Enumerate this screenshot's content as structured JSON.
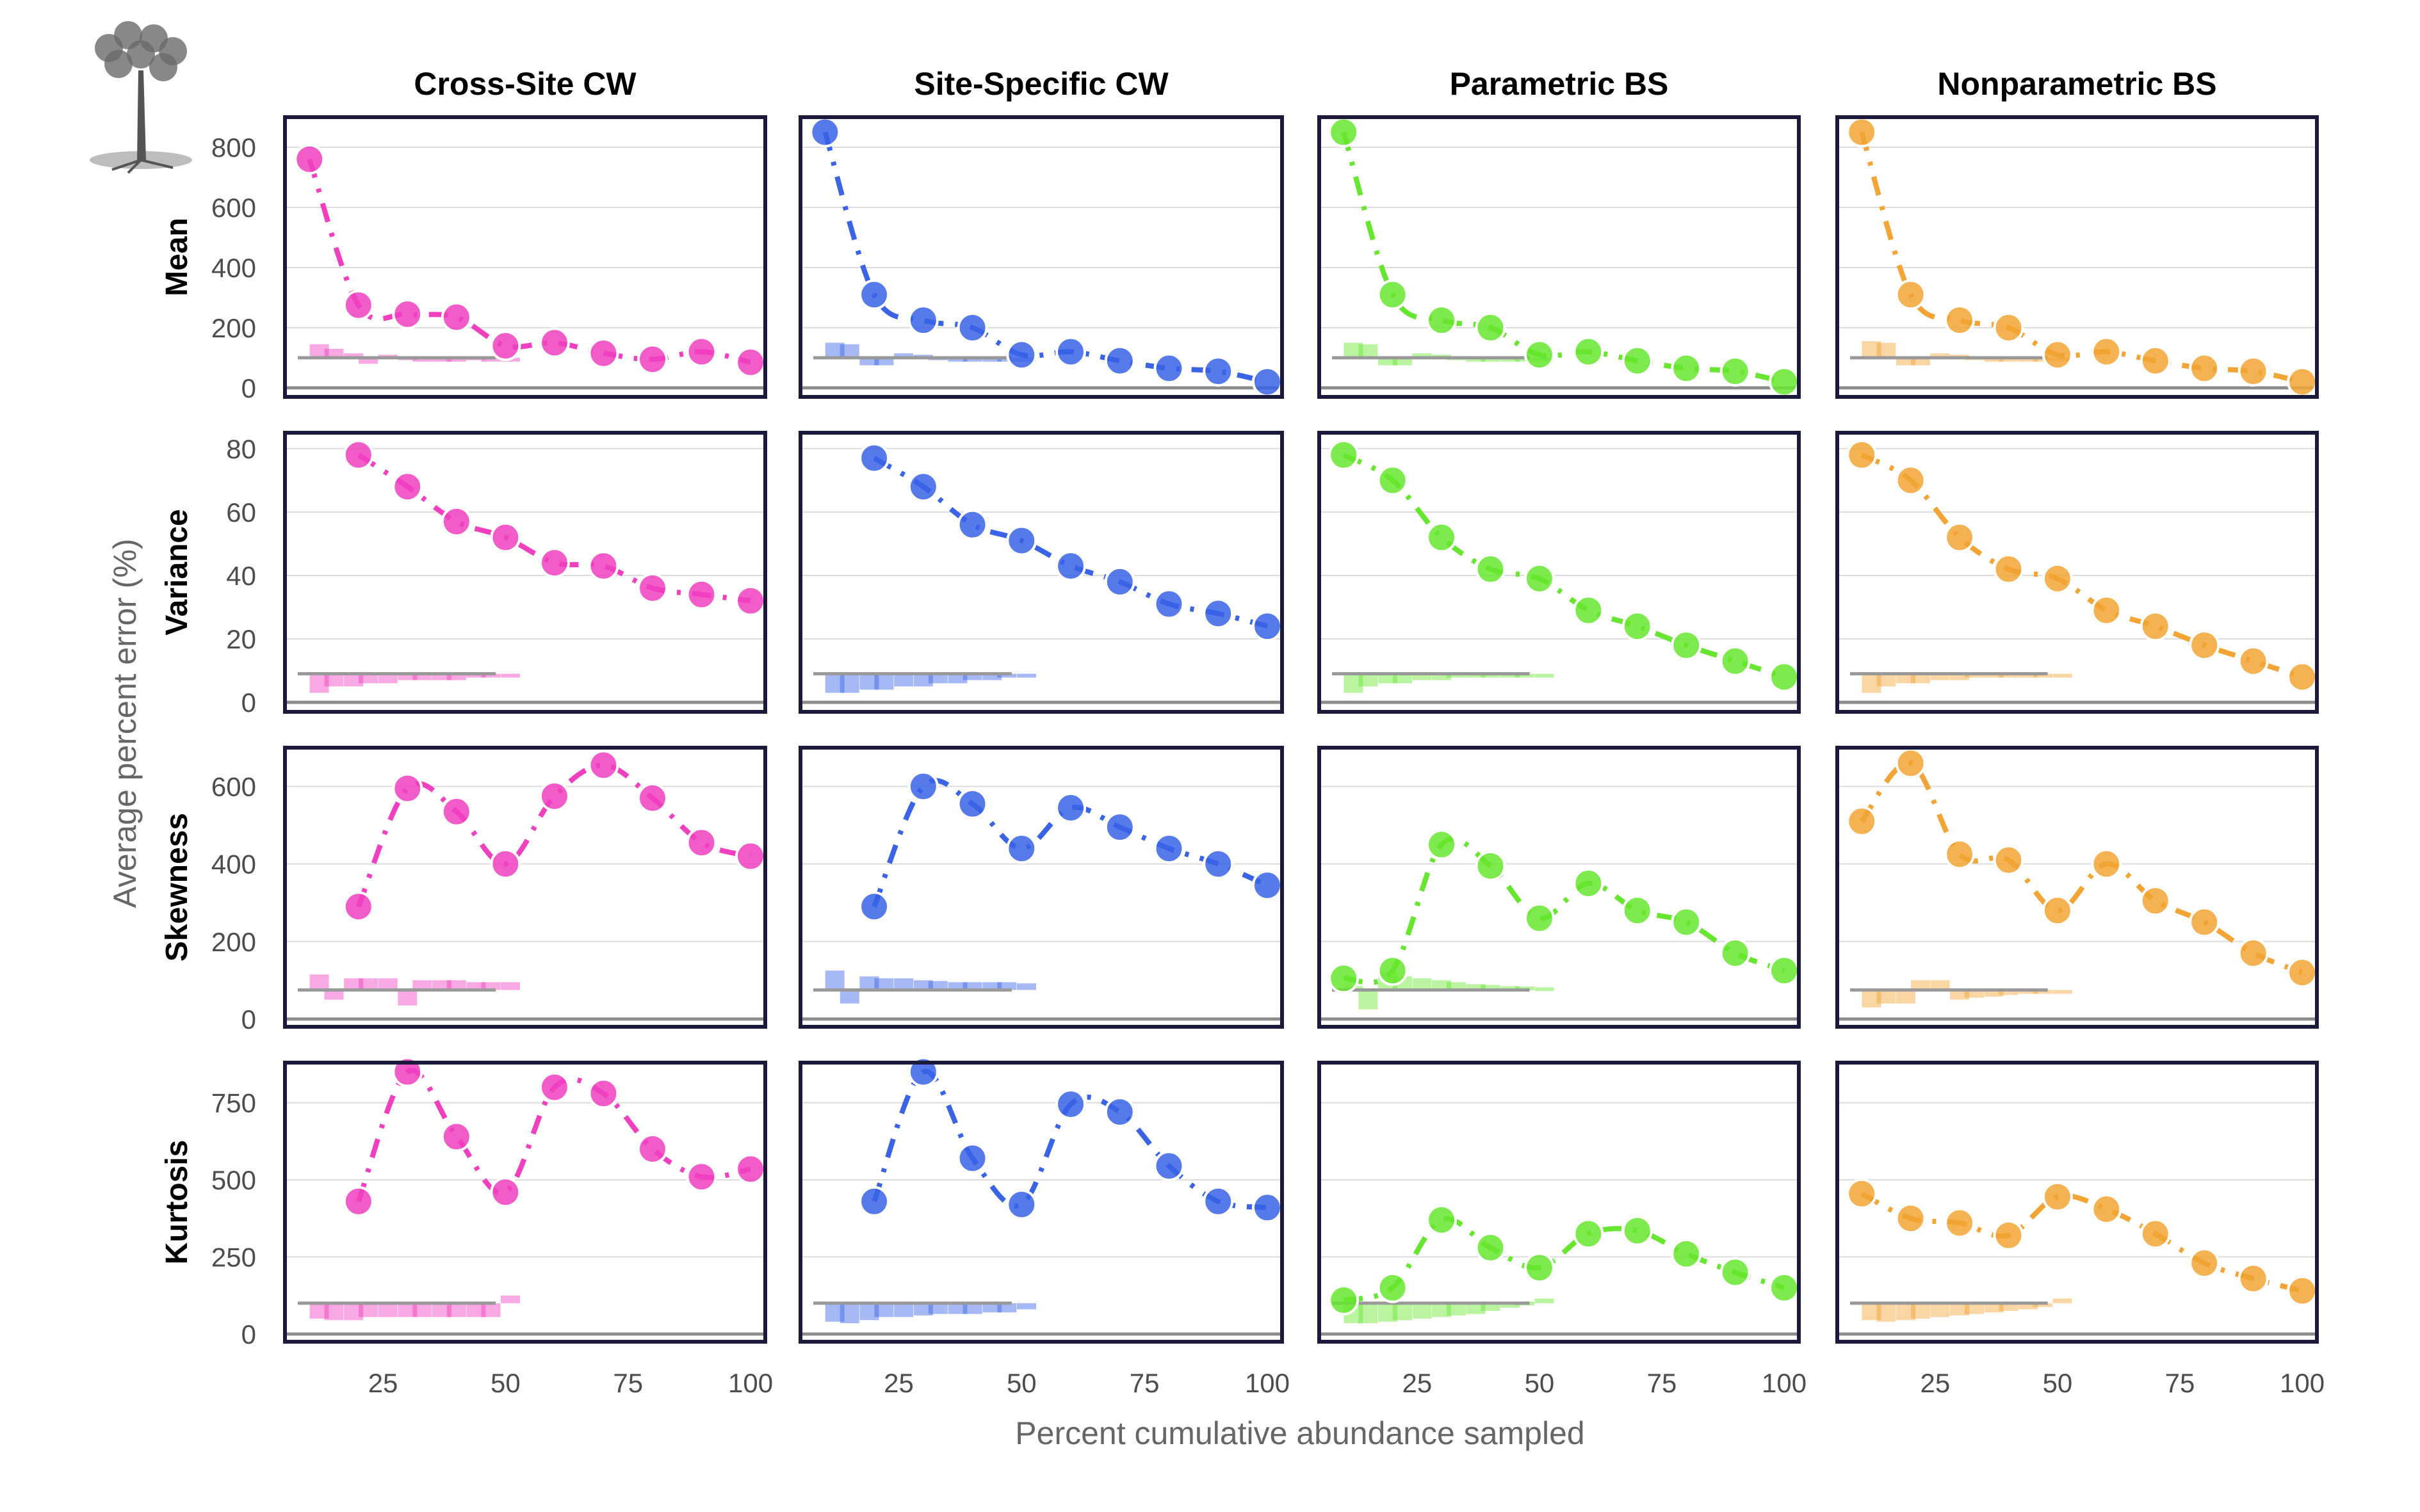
{
  "figure": {
    "xlabel": "Percent cumulative abundance sampled",
    "ylabel": "Average percent error (%)"
  },
  "chart_data": {
    "type": "scatter",
    "layout": "facet-grid 4 rows x 4 columns",
    "columns": [
      {
        "name": "Cross-Site CW",
        "color": "#f03fbf"
      },
      {
        "name": "Site-Specific CW",
        "color": "#3a63e6"
      },
      {
        "name": "Parametric BS",
        "color": "#66e62e"
      },
      {
        "name": "Nonparametric BS",
        "color": "#f2a434"
      }
    ],
    "x_ticks": [
      25,
      50,
      75,
      100
    ],
    "xlim": [
      5,
      103
    ],
    "x_points": [
      10,
      20,
      30,
      40,
      50,
      60,
      70,
      80,
      90,
      100
    ],
    "grid": true,
    "rows": [
      {
        "name": "Mean",
        "ylim": [
          -30,
          900
        ],
        "y_ticks": [
          0,
          200,
          400,
          600,
          800
        ],
        "panels": [
          {
            "points": [
              760,
              275,
              245,
              235,
              140,
              150,
              115,
              95,
              120,
              85
            ],
            "bar_x": [
              12,
              15,
              19,
              22,
              26,
              30,
              33,
              37,
              40,
              44,
              47,
              51
            ],
            "bars": [
              145,
              130,
              115,
              80,
              110,
              105,
              100,
              95,
              90,
              105,
              100,
              98
            ],
            "ref": 100
          },
          {
            "points": [
              850,
              310,
              225,
              200,
              110,
              120,
              90,
              65,
              55,
              20
            ],
            "bar_x": [
              12,
              15,
              19,
              22,
              26,
              30,
              33,
              37,
              40,
              44,
              47,
              51
            ],
            "bars": [
              150,
              145,
              75,
              75,
              115,
              110,
              105,
              100,
              98,
              100,
              98,
              97
            ],
            "ref": 100
          },
          {
            "points": [
              850,
              310,
              225,
              200,
              110,
              120,
              90,
              65,
              55,
              20
            ],
            "bar_x": [
              12,
              15,
              19,
              22,
              26,
              30,
              33,
              37,
              40,
              44,
              47,
              51
            ],
            "bars": [
              150,
              145,
              75,
              75,
              115,
              110,
              105,
              100,
              98,
              100,
              98,
              97
            ],
            "ref": 100
          },
          {
            "points": [
              850,
              310,
              225,
              200,
              110,
              120,
              90,
              65,
              55,
              20
            ],
            "bar_x": [
              12,
              15,
              19,
              22,
              26,
              30,
              33,
              37,
              40,
              44,
              47,
              51
            ],
            "bars": [
              155,
              150,
              75,
              75,
              115,
              110,
              105,
              100,
              98,
              100,
              98,
              97
            ],
            "ref": 100
          }
        ]
      },
      {
        "name": "Variance",
        "ylim": [
          -3,
          85
        ],
        "y_ticks": [
          0,
          20,
          40,
          60,
          80
        ],
        "panels": [
          {
            "points": [
              null,
              78,
              68,
              57,
              52,
              44,
              43,
              36,
              34,
              32
            ],
            "bar_x": [
              12,
              15,
              19,
              22,
              26,
              30,
              33,
              37,
              40,
              44,
              47,
              51
            ],
            "bars": [
              3,
              5,
              5,
              6,
              6,
              7,
              7,
              7,
              7,
              8,
              8,
              8
            ],
            "ref": 9
          },
          {
            "points": [
              null,
              77,
              68,
              56,
              51,
              43,
              38,
              31,
              28,
              24
            ],
            "bar_x": [
              12,
              15,
              19,
              22,
              26,
              30,
              33,
              37,
              40,
              44,
              47,
              51
            ],
            "bars": [
              3,
              3,
              4,
              4,
              5,
              5,
              6,
              6,
              7,
              7,
              8,
              8
            ],
            "ref": 9
          },
          {
            "points": [
              78,
              70,
              52,
              42,
              39,
              29,
              24,
              18,
              13,
              8
            ],
            "bar_x": [
              12,
              15,
              19,
              22,
              26,
              30,
              33,
              37,
              40,
              44,
              47,
              51
            ],
            "bars": [
              3,
              5,
              6,
              6,
              7,
              7,
              8,
              8,
              8,
              9,
              9,
              9
            ],
            "ref": 9
          },
          {
            "points": [
              78,
              70,
              52,
              42,
              39,
              29,
              24,
              18,
              13,
              8
            ],
            "bar_x": [
              12,
              15,
              19,
              22,
              26,
              30,
              33,
              37,
              40,
              44,
              47,
              51
            ],
            "bars": [
              3,
              5,
              6,
              6,
              7,
              7,
              8,
              8,
              8,
              9,
              9,
              9
            ],
            "ref": 9
          }
        ]
      },
      {
        "name": "Skewness",
        "ylim": [
          -20,
          700
        ],
        "y_ticks": [
          0,
          200,
          400,
          600
        ],
        "panels": [
          {
            "points": [
              null,
              290,
              595,
              535,
              400,
              575,
              655,
              570,
              455,
              420
            ],
            "bar_x": [
              12,
              15,
              19,
              22,
              26,
              30,
              33,
              37,
              40,
              44,
              47,
              51
            ],
            "bars": [
              115,
              50,
              105,
              105,
              105,
              35,
              100,
              100,
              100,
              95,
              95,
              95
            ],
            "ref": 75
          },
          {
            "points": [
              null,
              290,
              600,
              555,
              440,
              545,
              495,
              440,
              400,
              345
            ],
            "bar_x": [
              12,
              15,
              19,
              22,
              26,
              30,
              33,
              37,
              40,
              44,
              47,
              51
            ],
            "bars": [
              125,
              40,
              110,
              105,
              105,
              100,
              98,
              95,
              95,
              95,
              95,
              92
            ],
            "ref": 75
          },
          {
            "points": [
              105,
              125,
              450,
              395,
              260,
              350,
              280,
              250,
              170,
              125
            ],
            "bar_x": [
              12,
              15,
              19,
              22,
              26,
              30,
              33,
              37,
              40,
              44,
              47,
              51
            ],
            "bars": [
              85,
              25,
              120,
              110,
              105,
              100,
              95,
              90,
              88,
              85,
              84,
              82
            ],
            "ref": 75
          },
          {
            "points": [
              510,
              660,
              425,
              410,
              280,
              400,
              305,
              250,
              170,
              120
            ],
            "bar_x": [
              12,
              15,
              19,
              22,
              26,
              30,
              33,
              37,
              40,
              44,
              47,
              51
            ],
            "bars": [
              30,
              40,
              40,
              100,
              100,
              50,
              55,
              58,
              62,
              65,
              68,
              70
            ],
            "ref": 75
          }
        ]
      },
      {
        "name": "Kurtosis",
        "ylim": [
          -25,
          880
        ],
        "y_ticks": [
          0,
          250,
          500,
          750
        ],
        "panels": [
          {
            "points": [
              null,
              430,
              850,
              640,
              460,
              800,
              780,
              600,
              510,
              535
            ],
            "bar_x": [
              12,
              15,
              19,
              22,
              26,
              30,
              33,
              37,
              40,
              44,
              47,
              51
            ],
            "bars": [
              50,
              45,
              45,
              55,
              55,
              55,
              55,
              55,
              55,
              55,
              55,
              125
            ],
            "ref": 100
          },
          {
            "points": [
              null,
              430,
              850,
              570,
              420,
              745,
              720,
              545,
              430,
              410
            ],
            "bar_x": [
              12,
              15,
              19,
              22,
              26,
              30,
              33,
              37,
              40,
              44,
              47,
              51
            ],
            "bars": [
              40,
              35,
              45,
              55,
              55,
              60,
              65,
              65,
              65,
              70,
              70,
              80
            ],
            "ref": 100
          },
          {
            "points": [
              110,
              150,
              370,
              280,
              215,
              325,
              335,
              260,
              200,
              150
            ],
            "bar_x": [
              12,
              15,
              19,
              22,
              26,
              30,
              33,
              37,
              40,
              44,
              47,
              51
            ],
            "bars": [
              35,
              35,
              40,
              45,
              50,
              55,
              60,
              65,
              75,
              85,
              105,
              115
            ],
            "ref": 100
          },
          {
            "points": [
              455,
              375,
              360,
              320,
              445,
              405,
              325,
              230,
              180,
              140
            ],
            "bar_x": [
              12,
              15,
              19,
              22,
              26,
              30,
              33,
              37,
              40,
              44,
              47,
              51
            ],
            "bars": [
              45,
              40,
              45,
              50,
              55,
              60,
              65,
              70,
              75,
              80,
              90,
              115
            ],
            "ref": 100
          }
        ]
      }
    ]
  }
}
